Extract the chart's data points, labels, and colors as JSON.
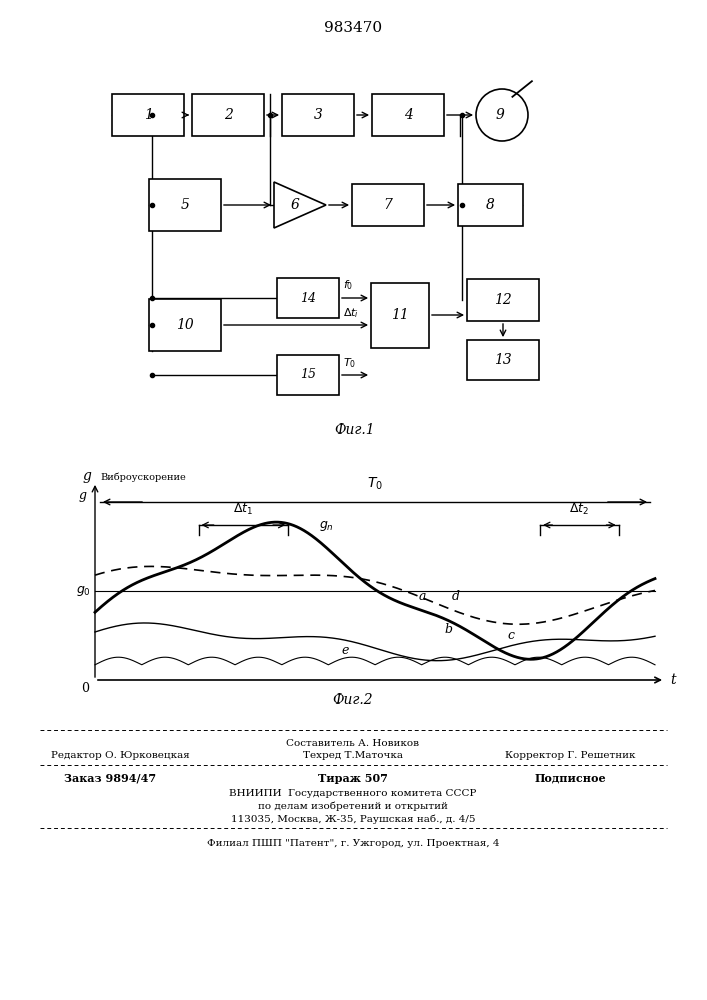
{
  "title": "983470",
  "bg": "#ffffff",
  "fig1_caption": "Фиг.1",
  "fig2_caption": "Фиг.2",
  "footer": {
    "line1_center": "Составитель А. Новиков",
    "line2_left": "Редактор О. Юрковецкая",
    "line2_center": "Техред Т.Маточка",
    "line2_right": "Корректор Г. Решетник",
    "line3_left": "Заказ 9894/47",
    "line3_center": "Тираж 507",
    "line3_right": "Подписное",
    "line4": "ВНИИПИ  Государственного комитета СССР",
    "line5": "по делам изобретений и открытий",
    "line6": "113035, Москва, Ж-35, Раушская наб., д. 4/5",
    "line7": "Филиал ПШП \"Патент\", г. Ужгород, ул. Проектная, 4"
  }
}
